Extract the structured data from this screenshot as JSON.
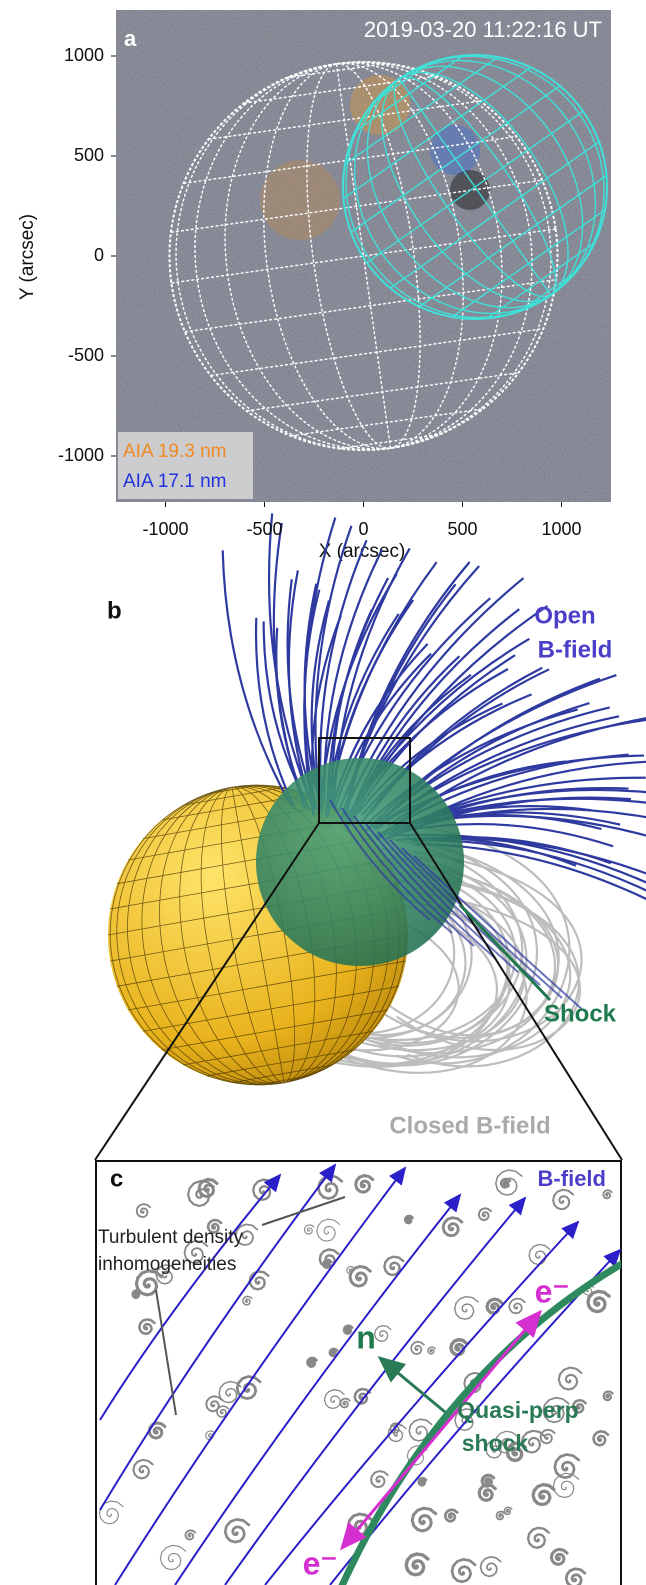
{
  "chart_data": {
    "type": "image",
    "label": "a",
    "title": "2019-03-20 11:22:16 UT",
    "x_label": "X (arcsec)",
    "y_label": "Y (arcsec)",
    "xlim": [
      -1250,
      1250
    ],
    "ylim": [
      -1230,
      1230
    ],
    "xticks": [
      -1000,
      -500,
      0,
      500,
      1000
    ],
    "yticks": [
      1000,
      500,
      0,
      -500,
      -1000
    ],
    "legend": [
      {
        "name": "AIA 19.3 nm",
        "color": "#f08a24"
      },
      {
        "name": "AIA 17.1 nm",
        "color": "#2233dd"
      }
    ]
  },
  "diagram_b": {
    "label": "b",
    "open_field": [
      "Open",
      "B-field"
    ],
    "shock": "Shock",
    "closed_field": "Closed B-field"
  },
  "diagram_c": {
    "label": "c",
    "b_field": "B-field",
    "turbulence": [
      "Turbulent density",
      "inhomogeneities"
    ],
    "normal": "n",
    "shock": [
      "Quasi-perp",
      "shock"
    ],
    "electron_top": "e⁻",
    "electron_bottom": "e⁻"
  }
}
